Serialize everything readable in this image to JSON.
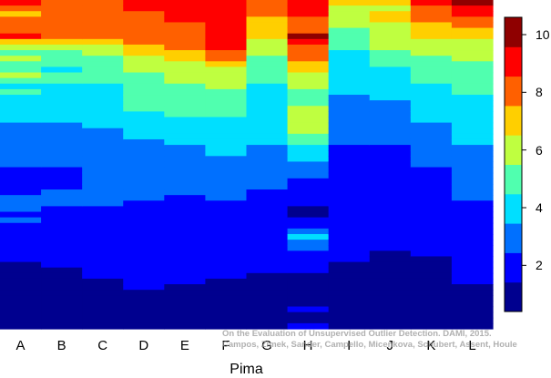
{
  "chart_data": {
    "type": "heatmap",
    "xlabel": "Pima",
    "categories": [
      "A",
      "B",
      "C",
      "D",
      "E",
      "F",
      "G",
      "H",
      "I",
      "J",
      "K",
      "L"
    ],
    "colorbar": {
      "min": 0.4,
      "max": 10.6,
      "ticks": [
        2,
        4,
        6,
        8,
        10
      ]
    },
    "colormap": [
      "#00008f",
      "#0000ff",
      "#0070ff",
      "#00dfff",
      "#50ffaf",
      "#bfff40",
      "#ffcf00",
      "#ff6000",
      "#ff0000",
      "#8f0000"
    ],
    "columns": [
      [
        9.5,
        8.5,
        7.5,
        8,
        8,
        8,
        9.5,
        7,
        6,
        5,
        5.5,
        5,
        4.5,
        5.5,
        4.5,
        4,
        4.5,
        4,
        4,
        3.5,
        3.5,
        4,
        3,
        3,
        3,
        2.5,
        2.5,
        3,
        2.5,
        2.5,
        2,
        2,
        2,
        2,
        2,
        2.5,
        3,
        2.5,
        2,
        2.5,
        2,
        2,
        2,
        1.5,
        1.5,
        1.5,
        1.5,
        1,
        1,
        1,
        1,
        1,
        1,
        1,
        1,
        1,
        1,
        1,
        1
      ],
      [
        8.5,
        8,
        8,
        8,
        8,
        8,
        8,
        7,
        6,
        5,
        4.5,
        5,
        4,
        4.5,
        4.5,
        4,
        4,
        3.5,
        4,
        3.5,
        3.5,
        3.5,
        3,
        2.5,
        3,
        3,
        2.5,
        2.5,
        2.5,
        2.5,
        2,
        2,
        2,
        2,
        3,
        2.5,
        2.5,
        2,
        2,
        1.5,
        2,
        1.5,
        1.5,
        1.5,
        1.5,
        1.5,
        1.5,
        1.5,
        1,
        1,
        1,
        1,
        1,
        1,
        1,
        1,
        1,
        1,
        1
      ],
      [
        8.5,
        8.5,
        8,
        8,
        8,
        8,
        8,
        7,
        6.5,
        5.5,
        5,
        5,
        4.5,
        4.5,
        4.5,
        4,
        4,
        4,
        4,
        4,
        3.5,
        3.5,
        3.5,
        3,
        3,
        2.5,
        2.5,
        3,
        3,
        2.5,
        2.5,
        3,
        2.5,
        2.5,
        3,
        2.5,
        2.5,
        2,
        2,
        2,
        2,
        2,
        2,
        2,
        2,
        1.5,
        1.5,
        1.5,
        1.5,
        1.5,
        1,
        1,
        1,
        1,
        1,
        1,
        1,
        1,
        1
      ],
      [
        9.5,
        9,
        8.5,
        8.5,
        8.5,
        8,
        8,
        8,
        7.5,
        7,
        6.5,
        6,
        5.5,
        5,
        5,
        5,
        5,
        4.5,
        4.5,
        4.5,
        4,
        4,
        4,
        3.5,
        3.5,
        3,
        3,
        3,
        3,
        3,
        2.5,
        2.5,
        2.5,
        2.5,
        2.5,
        2.5,
        2,
        2,
        2,
        2,
        2,
        2,
        2,
        2,
        2,
        1.5,
        1.5,
        1.5,
        1.5,
        1.5,
        1.5,
        1.5,
        1,
        1,
        1,
        1,
        1,
        1,
        1
      ],
      [
        9.5,
        9,
        9,
        9,
        8.5,
        8,
        8,
        8.5,
        8,
        7.5,
        7,
        6.5,
        6,
        6,
        5.5,
        5,
        5,
        5,
        4.5,
        4.5,
        4.5,
        4,
        4,
        4,
        3.5,
        3.5,
        3,
        3,
        3,
        3,
        2.5,
        2.5,
        2.5,
        2.5,
        2.5,
        2,
        2,
        2,
        2,
        2,
        2,
        2,
        2,
        2,
        1.5,
        1.5,
        1.5,
        1.5,
        1.5,
        1.5,
        1.5,
        1,
        1,
        1,
        1,
        1,
        1,
        1,
        1
      ],
      [
        9.5,
        9,
        9,
        9,
        9,
        9,
        9,
        9,
        9,
        8.5,
        8,
        7,
        6.5,
        6,
        6,
        5.5,
        5,
        5,
        5,
        4.5,
        4.5,
        4,
        4,
        4,
        4,
        3.5,
        3.5,
        3.5,
        3,
        3,
        3,
        2.5,
        2.5,
        2.5,
        2.5,
        2.5,
        2,
        2,
        2,
        2,
        2,
        2,
        2,
        2,
        1.5,
        1.5,
        1.5,
        1.5,
        1.5,
        1.5,
        1,
        1,
        1,
        1,
        1,
        1,
        1,
        1,
        1
      ],
      [
        8.5,
        8,
        8,
        7.5,
        7,
        7,
        7,
        6.5,
        6,
        5.5,
        5,
        5,
        4.5,
        4.5,
        4.5,
        4,
        4,
        4,
        4,
        4,
        4,
        4,
        4,
        4,
        3.5,
        3.5,
        3,
        3,
        3,
        2.5,
        2.5,
        2.5,
        2.5,
        2.5,
        2,
        2,
        2,
        2,
        2,
        2,
        2,
        2,
        2,
        1.5,
        1.5,
        1.5,
        1.5,
        1.5,
        1.5,
        1,
        1,
        1,
        1,
        1,
        1,
        1,
        1,
        1,
        1
      ],
      [
        9.5,
        9,
        9,
        8.5,
        8.5,
        8.5,
        10,
        9.5,
        8.5,
        8.5,
        8,
        7.5,
        7,
        6.5,
        6,
        5.5,
        5,
        5,
        5,
        6,
        6,
        6.5,
        6,
        5.5,
        5,
        4.5,
        4,
        4,
        3.5,
        3,
        3,
        2.5,
        2,
        2,
        1.5,
        2,
        2,
        1,
        1,
        1.5,
        2,
        3,
        3.5,
        3,
        2.5,
        2,
        2,
        1.5,
        1.5,
        1,
        1,
        1,
        1,
        1,
        1,
        1.5,
        1,
        1,
        1.5
      ],
      [
        7,
        6.5,
        6,
        6,
        5.5,
        5,
        5,
        4.5,
        4.5,
        4,
        4,
        4,
        4,
        4,
        3.5,
        3.5,
        3.5,
        3,
        3,
        3,
        3,
        3,
        2.5,
        2.5,
        2.5,
        2.5,
        2,
        2,
        2,
        2,
        2,
        2,
        2,
        2,
        2,
        2,
        2,
        2,
        2,
        1.5,
        1.5,
        1.5,
        1.5,
        1.5,
        1.5,
        1.5,
        1.5,
        1,
        1,
        1,
        1,
        1,
        1,
        1,
        1,
        1,
        1,
        1,
        1
      ],
      [
        7,
        6.5,
        7,
        7,
        6.5,
        6,
        6,
        5.5,
        5.5,
        5,
        4.5,
        4.5,
        4,
        4,
        4,
        3.5,
        3.5,
        3.5,
        3,
        3,
        3,
        3,
        3,
        2.5,
        2.5,
        2.5,
        2,
        2,
        2,
        2,
        2,
        2,
        2,
        2,
        2,
        2,
        2,
        1.5,
        1.5,
        1.5,
        1.5,
        1.5,
        1.5,
        1.5,
        1.5,
        1,
        1,
        1,
        1,
        1,
        1,
        1,
        1,
        1,
        1,
        1,
        1,
        1,
        1
      ],
      [
        9.5,
        8.5,
        8,
        8,
        7.5,
        7,
        7,
        6.5,
        6,
        5.5,
        5,
        5,
        4.5,
        4.5,
        4.5,
        4,
        4,
        4,
        3.5,
        3.5,
        3.5,
        3.5,
        3,
        3,
        3,
        3,
        2.5,
        2.5,
        2.5,
        2.5,
        2,
        2,
        2,
        2,
        2,
        2,
        2,
        2,
        1.5,
        1.5,
        1.5,
        1.5,
        1.5,
        1.5,
        1.5,
        1.5,
        1,
        1,
        1,
        1,
        1,
        1,
        1,
        1,
        1,
        1,
        1,
        1,
        1
      ],
      [
        10,
        9.5,
        9,
        8.5,
        8,
        7.5,
        7,
        6.5,
        6,
        5.5,
        5.5,
        5,
        5,
        5,
        4.5,
        4.5,
        4.5,
        4,
        4,
        4,
        4,
        4,
        4,
        3.5,
        3.5,
        3.5,
        3,
        3,
        3,
        3,
        3,
        2.5,
        2.5,
        2.5,
        2.5,
        2.5,
        2,
        2,
        2,
        2,
        2,
        2,
        2,
        2,
        2,
        1.5,
        1.5,
        1.5,
        1.5,
        1.5,
        1.5,
        1,
        1,
        1,
        1,
        1,
        1,
        1,
        1
      ]
    ]
  },
  "watermark": {
    "line1": "On the Evaluation of Unsupervised Outlier Detection. DAMI, 2015.",
    "line2": "Campos, Zimek, Sander, Campello, Micenkova, Schubert, Assent, Houle"
  }
}
